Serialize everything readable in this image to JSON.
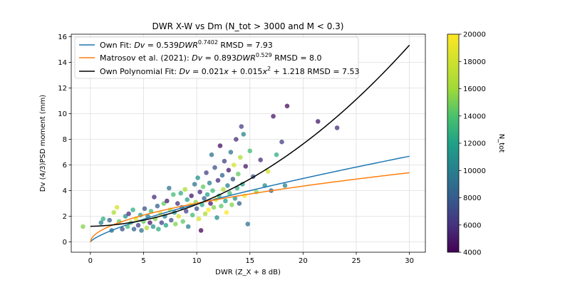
{
  "chart_data": {
    "type": "scatter",
    "title": "DWR X-W vs Dm (N_tot > 3000 and M < 0.3)",
    "xlabel": "DWR (Z_X + 8 dB)",
    "ylabel": "Dv (4/3)PSD moment (mm)",
    "xlim": [
      -1.8,
      31.5
    ],
    "ylim": [
      -0.8,
      16.2
    ],
    "xticks": [
      0,
      5,
      10,
      15,
      20,
      25,
      30
    ],
    "yticks": [
      0,
      2,
      4,
      6,
      8,
      10,
      12,
      14,
      16
    ],
    "grid": true,
    "legend_position": "top-left",
    "colorbar": {
      "label": "N_tot",
      "min": 4000,
      "max": 20000,
      "ticks": [
        4000,
        6000,
        8000,
        10000,
        12000,
        14000,
        16000,
        18000,
        20000
      ],
      "colormap": "viridis"
    },
    "series": [
      {
        "name": "Own Fit: Dv = 0.539 DWR^0.7402  RMSD = 7.93",
        "type": "line",
        "color": "#1f77b4",
        "formula": {
          "kind": "power",
          "a": 0.539,
          "b": 0.7402
        },
        "x_range": [
          0,
          30
        ]
      },
      {
        "name": "Matrosov et al. (2021): Dv = 0.893 DWR^0.529  RMSD = 8.0",
        "type": "line",
        "color": "#ff7f0e",
        "formula": {
          "kind": "power",
          "a": 0.893,
          "b": 0.529
        },
        "x_range": [
          0,
          30
        ]
      },
      {
        "name": "Own Polynomial Fit: Dv = 0.021x + 0.015x² + 1.218 RMSD = 7.53",
        "type": "line",
        "color": "#000000",
        "formula": {
          "kind": "poly",
          "c0": 1.218,
          "c1": 0.021,
          "c2": 0.015
        },
        "x_range": [
          0,
          30
        ]
      }
    ],
    "points": [
      {
        "x": -0.7,
        "y": 1.2,
        "c": 17000
      },
      {
        "x": 1.0,
        "y": 1.5,
        "c": 11000
      },
      {
        "x": 1.2,
        "y": 1.8,
        "c": 14000
      },
      {
        "x": 1.8,
        "y": 1.7,
        "c": 9000
      },
      {
        "x": 2.0,
        "y": 0.9,
        "c": 10000
      },
      {
        "x": 2.2,
        "y": 2.3,
        "c": 18000
      },
      {
        "x": 2.5,
        "y": 2.7,
        "c": 19000
      },
      {
        "x": 2.7,
        "y": 1.6,
        "c": 16000
      },
      {
        "x": 3.0,
        "y": 1.0,
        "c": 8000
      },
      {
        "x": 3.3,
        "y": 2.0,
        "c": 12000
      },
      {
        "x": 3.5,
        "y": 1.2,
        "c": 15000
      },
      {
        "x": 3.6,
        "y": 2.2,
        "c": 6000
      },
      {
        "x": 3.8,
        "y": 1.5,
        "c": 17000
      },
      {
        "x": 4.0,
        "y": 2.5,
        "c": 14000
      },
      {
        "x": 4.1,
        "y": 1.0,
        "c": 9000
      },
      {
        "x": 4.3,
        "y": 1.8,
        "c": 19000
      },
      {
        "x": 4.5,
        "y": 1.3,
        "c": 7000
      },
      {
        "x": 4.7,
        "y": 2.1,
        "c": 13000
      },
      {
        "x": 4.8,
        "y": 0.9,
        "c": 10000
      },
      {
        "x": 5.0,
        "y": 1.6,
        "c": 16000
      },
      {
        "x": 5.1,
        "y": 2.6,
        "c": 8000
      },
      {
        "x": 5.3,
        "y": 1.1,
        "c": 18000
      },
      {
        "x": 5.4,
        "y": 2.0,
        "c": 11000
      },
      {
        "x": 5.6,
        "y": 1.5,
        "c": 5000
      },
      {
        "x": 5.7,
        "y": 2.4,
        "c": 15000
      },
      {
        "x": 5.9,
        "y": 1.2,
        "c": 12000
      },
      {
        "x": 6.0,
        "y": 3.5,
        "c": 6000
      },
      {
        "x": 6.1,
        "y": 1.8,
        "c": 17000
      },
      {
        "x": 6.3,
        "y": 2.8,
        "c": 9000
      },
      {
        "x": 6.4,
        "y": 1.0,
        "c": 14000
      },
      {
        "x": 6.6,
        "y": 2.2,
        "c": 19000
      },
      {
        "x": 6.7,
        "y": 1.5,
        "c": 7000
      },
      {
        "x": 6.9,
        "y": 3.0,
        "c": 16000
      },
      {
        "x": 7.0,
        "y": 2.0,
        "c": 11000
      },
      {
        "x": 7.1,
        "y": 1.3,
        "c": 13000
      },
      {
        "x": 7.2,
        "y": 3.2,
        "c": 5000
      },
      {
        "x": 7.4,
        "y": 4.2,
        "c": 10000
      },
      {
        "x": 7.5,
        "y": 2.5,
        "c": 18000
      },
      {
        "x": 7.6,
        "y": 1.7,
        "c": 8000
      },
      {
        "x": 7.8,
        "y": 3.7,
        "c": 15000
      },
      {
        "x": 7.9,
        "y": 2.3,
        "c": 12000
      },
      {
        "x": 8.0,
        "y": 1.4,
        "c": 17000
      },
      {
        "x": 8.2,
        "y": 3.0,
        "c": 6000
      },
      {
        "x": 8.3,
        "y": 2.0,
        "c": 19000
      },
      {
        "x": 8.5,
        "y": 3.8,
        "c": 14000
      },
      {
        "x": 8.6,
        "y": 2.7,
        "c": 9000
      },
      {
        "x": 8.7,
        "y": 1.6,
        "c": 16000
      },
      {
        "x": 8.9,
        "y": 4.1,
        "c": 18000
      },
      {
        "x": 9.0,
        "y": 2.4,
        "c": 7000
      },
      {
        "x": 9.1,
        "y": 3.3,
        "c": 13000
      },
      {
        "x": 9.2,
        "y": 1.2,
        "c": 11000
      },
      {
        "x": 9.4,
        "y": 2.9,
        "c": 20000
      },
      {
        "x": 9.5,
        "y": 3.6,
        "c": 5000
      },
      {
        "x": 9.6,
        "y": 2.1,
        "c": 15000
      },
      {
        "x": 9.8,
        "y": 4.5,
        "c": 10000
      },
      {
        "x": 9.9,
        "y": 3.1,
        "c": 17000
      },
      {
        "x": 10.0,
        "y": 2.6,
        "c": 8000
      },
      {
        "x": 10.1,
        "y": 5.0,
        "c": 12000
      },
      {
        "x": 10.2,
        "y": 1.8,
        "c": 19000
      },
      {
        "x": 10.3,
        "y": 3.9,
        "c": 6000
      },
      {
        "x": 10.4,
        "y": 0.9,
        "c": 4000
      },
      {
        "x": 10.5,
        "y": 2.9,
        "c": 14000
      },
      {
        "x": 10.6,
        "y": 4.3,
        "c": 16000
      },
      {
        "x": 10.7,
        "y": 3.4,
        "c": 9000
      },
      {
        "x": 10.8,
        "y": 2.2,
        "c": 18000
      },
      {
        "x": 10.9,
        "y": 5.4,
        "c": 7000
      },
      {
        "x": 11.0,
        "y": 3.7,
        "c": 13000
      },
      {
        "x": 11.1,
        "y": 2.5,
        "c": 20000
      },
      {
        "x": 11.2,
        "y": 4.6,
        "c": 11000
      },
      {
        "x": 11.3,
        "y": 3.0,
        "c": 5000
      },
      {
        "x": 11.4,
        "y": 6.8,
        "c": 10000
      },
      {
        "x": 11.5,
        "y": 4.0,
        "c": 15000
      },
      {
        "x": 11.6,
        "y": 2.7,
        "c": 17000
      },
      {
        "x": 11.7,
        "y": 5.8,
        "c": 8000
      },
      {
        "x": 11.8,
        "y": 3.3,
        "c": 19000
      },
      {
        "x": 11.9,
        "y": 1.9,
        "c": 12000
      },
      {
        "x": 12.0,
        "y": 4.8,
        "c": 6000
      },
      {
        "x": 12.1,
        "y": 3.6,
        "c": 14000
      },
      {
        "x": 12.2,
        "y": 7.5,
        "c": 4500
      },
      {
        "x": 12.3,
        "y": 2.8,
        "c": 16000
      },
      {
        "x": 12.4,
        "y": 5.2,
        "c": 9000
      },
      {
        "x": 12.5,
        "y": 4.1,
        "c": 18000
      },
      {
        "x": 12.6,
        "y": 6.3,
        "c": 7000
      },
      {
        "x": 12.7,
        "y": 3.2,
        "c": 13000
      },
      {
        "x": 12.8,
        "y": 2.3,
        "c": 20000
      },
      {
        "x": 12.9,
        "y": 4.4,
        "c": 11000
      },
      {
        "x": 13.0,
        "y": 5.6,
        "c": 5000
      },
      {
        "x": 13.1,
        "y": 3.8,
        "c": 15000
      },
      {
        "x": 13.2,
        "y": 7.0,
        "c": 10000
      },
      {
        "x": 13.3,
        "y": 2.9,
        "c": 17000
      },
      {
        "x": 13.4,
        "y": 4.9,
        "c": 8000
      },
      {
        "x": 13.5,
        "y": 6.0,
        "c": 19000
      },
      {
        "x": 13.6,
        "y": 3.4,
        "c": 12000
      },
      {
        "x": 13.7,
        "y": 8.0,
        "c": 6000
      },
      {
        "x": 13.8,
        "y": 4.2,
        "c": 14000
      },
      {
        "x": 13.9,
        "y": 5.3,
        "c": 16000
      },
      {
        "x": 14.0,
        "y": 3.0,
        "c": 9000
      },
      {
        "x": 14.1,
        "y": 6.6,
        "c": 18000
      },
      {
        "x": 14.2,
        "y": 9.0,
        "c": 7000
      },
      {
        "x": 14.3,
        "y": 4.5,
        "c": 13000
      },
      {
        "x": 14.4,
        "y": 8.4,
        "c": 11000
      },
      {
        "x": 14.5,
        "y": 3.6,
        "c": 20000
      },
      {
        "x": 14.6,
        "y": 5.9,
        "c": 5000
      },
      {
        "x": 14.8,
        "y": 1.4,
        "c": 10000
      },
      {
        "x": 15.0,
        "y": 7.1,
        "c": 15000
      },
      {
        "x": 15.3,
        "y": 5.1,
        "c": 8000
      },
      {
        "x": 15.6,
        "y": 3.9,
        "c": 17000
      },
      {
        "x": 16.0,
        "y": 6.4,
        "c": 6000
      },
      {
        "x": 16.4,
        "y": 4.4,
        "c": 12000
      },
      {
        "x": 16.7,
        "y": 5.5,
        "c": 19000
      },
      {
        "x": 17.0,
        "y": 4.0,
        "c": 9000
      },
      {
        "x": 17.2,
        "y": 9.8,
        "c": 5000
      },
      {
        "x": 17.5,
        "y": 6.8,
        "c": 14000
      },
      {
        "x": 18.0,
        "y": 7.8,
        "c": 7000
      },
      {
        "x": 18.3,
        "y": 4.4,
        "c": 11000
      },
      {
        "x": 18.5,
        "y": 10.6,
        "c": 4500
      },
      {
        "x": 21.4,
        "y": 9.4,
        "c": 5000
      },
      {
        "x": 23.2,
        "y": 8.9,
        "c": 6000
      }
    ]
  }
}
